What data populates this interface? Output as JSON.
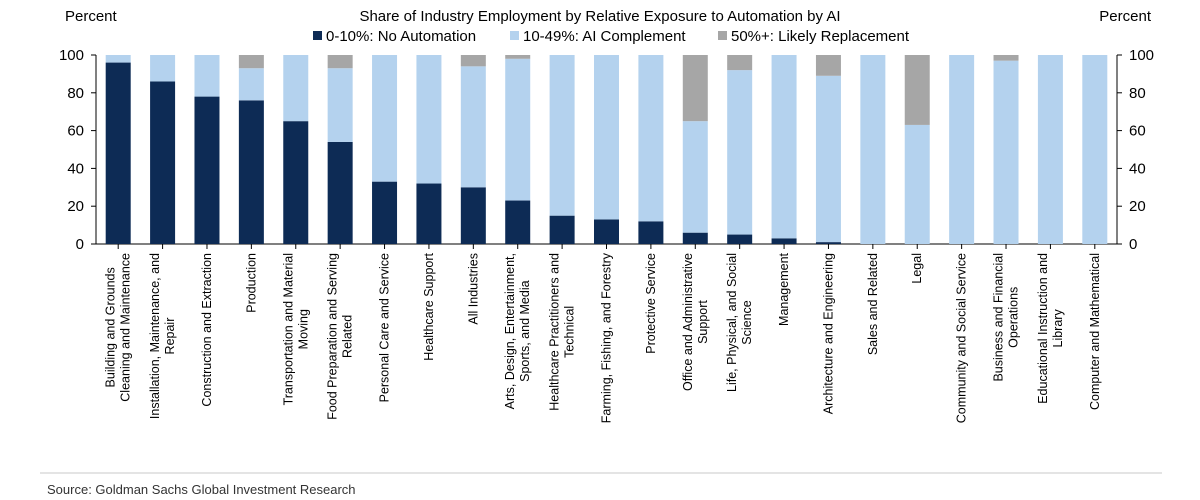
{
  "chart_data": {
    "type": "bar",
    "stacked": true,
    "title": "Share of Industry Employment by Relative Exposure to Automation by AI",
    "ylabel_left": "Percent",
    "ylabel_right": "Percent",
    "ylim": [
      0,
      100
    ],
    "yticks": [
      "0",
      "20",
      "40",
      "60",
      "80",
      "100"
    ],
    "categories": [
      "Building and Grounds Cleaning and Maintenance",
      "Installation, Maintenance, and Repair",
      "Construction and Extraction",
      "Production",
      "Transportation and Material Moving",
      "Food Preparation and Serving Related",
      "Personal Care and Service",
      "Healthcare Support",
      "All Industries",
      "Arts, Design, Entertainment, Sports, and Media",
      "Healthcare Practitioners and Technical",
      "Farming, Fishing, and Forestry",
      "Protective Service",
      "Office and Administrative Support",
      "Life, Physical, and Social Science",
      "Management",
      "Architecture and Engineering",
      "Sales and Related",
      "Legal",
      "Community and Social Service",
      "Business and Financial Operations",
      "Educational Instruction and Library",
      "Computer and Mathematical"
    ],
    "category_lines": [
      [
        "Building and Grounds",
        "Cleaning and Maintenance"
      ],
      [
        "Installation, Maintenance, and",
        "Repair"
      ],
      [
        "Construction and Extraction"
      ],
      [
        "Production"
      ],
      [
        "Transportation and Material",
        "Moving"
      ],
      [
        "Food Preparation and Serving",
        "Related"
      ],
      [
        "Personal Care and Service"
      ],
      [
        "Healthcare Support"
      ],
      [
        "All Industries"
      ],
      [
        "Arts, Design, Entertainment,",
        "Sports, and Media"
      ],
      [
        "Healthcare Practitioners and",
        "Technical"
      ],
      [
        "Farming, Fishing, and Forestry"
      ],
      [
        "Protective Service"
      ],
      [
        "Office and Administrative",
        "Support"
      ],
      [
        "Life, Physical, and Social",
        "Science"
      ],
      [
        "Management"
      ],
      [
        "Architecture and Engineering"
      ],
      [
        "Sales and Related"
      ],
      [
        "Legal"
      ],
      [
        "Community and Social Service"
      ],
      [
        "Business and Financial",
        "Operations"
      ],
      [
        "Educational Instruction and",
        "Library"
      ],
      [
        "Computer and Mathematical"
      ]
    ],
    "series": [
      {
        "name": "0-10%: No Automation",
        "color": "#0d2b55",
        "values": [
          96,
          86,
          78,
          76,
          65,
          54,
          33,
          32,
          30,
          23,
          15,
          13,
          12,
          6,
          5,
          3,
          1,
          0,
          0,
          0,
          0,
          0,
          0
        ]
      },
      {
        "name": "10-49%: AI Complement",
        "color": "#b4d2ee",
        "values": [
          4,
          14,
          22,
          17,
          35,
          39,
          67,
          68,
          64,
          75,
          85,
          87,
          88,
          59,
          87,
          97,
          88,
          100,
          63,
          100,
          97,
          100,
          100
        ]
      },
      {
        "name": "50%+: Likely Replacement",
        "color": "#a6a6a6",
        "values": [
          0,
          0,
          0,
          7,
          0,
          7,
          0,
          0,
          6,
          2,
          0,
          0,
          0,
          35,
          8,
          0,
          11,
          0,
          37,
          0,
          3,
          0,
          0
        ]
      }
    ],
    "legend_position": "top-center",
    "grid": false
  },
  "source": "Source: Goldman Sachs Global Investment Research"
}
